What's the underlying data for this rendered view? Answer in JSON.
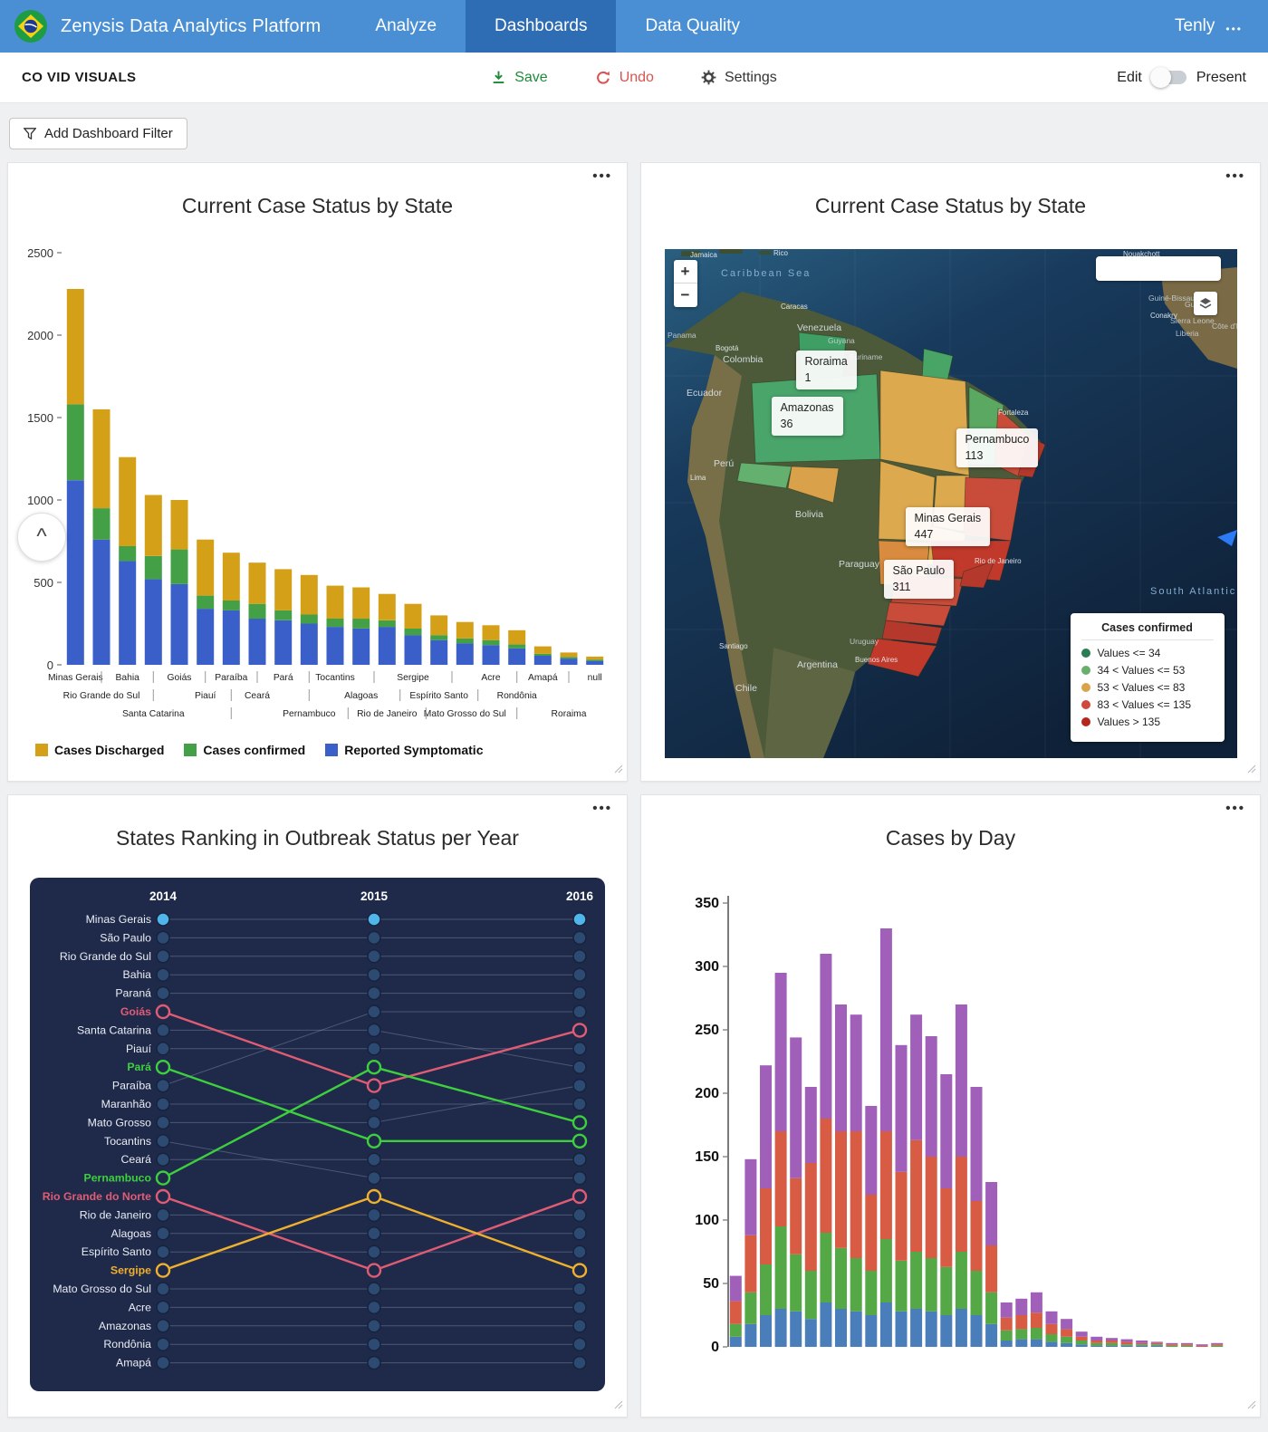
{
  "navbar": {
    "title": "Zenysis Data Analytics Platform",
    "tabs": [
      {
        "label": "Analyze",
        "active": false
      },
      {
        "label": "Dashboards",
        "active": true
      },
      {
        "label": "Data Quality",
        "active": false
      }
    ],
    "user": {
      "name": "Tenly",
      "menu_icon": "•••"
    }
  },
  "toolbar": {
    "dashboard_title": "CO VID VISUALS",
    "save_label": "Save",
    "undo_label": "Undo",
    "settings_label": "Settings",
    "edit_label": "Edit",
    "present_label": "Present"
  },
  "filter_bar": {
    "add_filter_label": "Add Dashboard Filter"
  },
  "tiles": [
    {
      "title": "Current Case Status by State",
      "menu_icon": "•••"
    },
    {
      "title": "Current Case Status by State",
      "menu_icon": "•••"
    },
    {
      "title": "States Ranking in Outbreak Status per Year",
      "menu_icon": "•••"
    },
    {
      "title": "Cases by Day",
      "menu_icon": "•••"
    }
  ],
  "chart_data": [
    {
      "type": "bar",
      "stacked": true,
      "title": "Current Case Status by State",
      "ylim": [
        0,
        2500
      ],
      "yticks": [
        0,
        500,
        1000,
        1500,
        2000,
        2500
      ],
      "categories": [
        "Minas Gerais",
        "Rio Grande do Sul",
        "Bahia",
        "Santa Catarina",
        "Goiás",
        "Piauí",
        "Paraíba",
        "Ceará",
        "Pará",
        "Pernambuco",
        "Tocantins",
        "Alagoas",
        "Rio de Janeiro",
        "Sergipe",
        "Espírito Santo",
        "Mato Grosso do Sul",
        "Acre",
        "Rondônia",
        "Amapá",
        "Roraima",
        "null"
      ],
      "label_rows": [
        0,
        1,
        0,
        2,
        0,
        1,
        0,
        1,
        0,
        2,
        0,
        1,
        2,
        0,
        1,
        2,
        0,
        1,
        0,
        2,
        0
      ],
      "series": [
        {
          "name": "Reported Symptomatic",
          "color": "#3a5fc8",
          "values": [
            1120,
            760,
            630,
            520,
            490,
            340,
            330,
            280,
            270,
            250,
            230,
            220,
            230,
            180,
            150,
            130,
            120,
            100,
            55,
            38,
            24
          ]
        },
        {
          "name": "Cases confirmed",
          "color": "#43a047",
          "values": [
            460,
            190,
            90,
            140,
            210,
            80,
            60,
            90,
            60,
            55,
            50,
            60,
            40,
            40,
            30,
            30,
            30,
            25,
            12,
            10,
            8
          ]
        },
        {
          "name": "Cases Discharged",
          "color": "#d4a017",
          "values": [
            700,
            600,
            540,
            370,
            300,
            340,
            290,
            250,
            250,
            240,
            200,
            190,
            160,
            150,
            120,
            100,
            90,
            85,
            45,
            27,
            18
          ]
        }
      ],
      "legend": [
        "Cases Discharged",
        "Cases confirmed",
        "Reported Symptomatic"
      ]
    },
    {
      "type": "map",
      "title": "Current Case Status by State",
      "metric": "Cases confirmed",
      "tooltips": [
        {
          "state": "Roraima",
          "value": "1"
        },
        {
          "state": "Amazonas",
          "value": "36"
        },
        {
          "state": "Pernambuco",
          "value": "113"
        },
        {
          "state": "Minas Gerais",
          "value": "447"
        },
        {
          "state": "São Paulo",
          "value": "311"
        }
      ],
      "legend": {
        "title": "Cases confirmed",
        "items": [
          {
            "label": "Values <= 34",
            "color": "#2a7d52"
          },
          {
            "label": "34 < Values <= 53",
            "color": "#6aaf6e"
          },
          {
            "label": "53 < Values <= 83",
            "color": "#d9a449"
          },
          {
            "label": "83 < Values <= 135",
            "color": "#cd4a3d"
          },
          {
            "label": "Values > 135",
            "color": "#b5271d"
          }
        ]
      },
      "controls": {
        "zoom_in": "+",
        "zoom_out": "−"
      },
      "map_labels": [
        "Jamaica",
        "Rico",
        "Caribbean Sea",
        "Caracas",
        "Venezuela",
        "Bogotá",
        "Colombia",
        "Guyana",
        "Suriname",
        "Ecuador",
        "Perú",
        "Lima",
        "Bolivia",
        "Paraguay",
        "Chile",
        "Santiago",
        "Argentina",
        "Uruguay",
        "Buenos Aires",
        "Fortaleza",
        "Rio de Janeiro",
        "Panama",
        "South Atlantic",
        "Guiné-Bissau",
        "Guinea",
        "Conakry",
        "Sierra Leone",
        "Liberia",
        "Côte d'Ivoire",
        "Nouakchott"
      ]
    },
    {
      "type": "bump",
      "title": "States Ranking in Outbreak Status per Year",
      "years": [
        "2014",
        "2015",
        "2016"
      ],
      "states": [
        {
          "name": "Minas Gerais",
          "ranks": [
            1,
            1,
            1
          ],
          "dot": "#4fb5ea"
        },
        {
          "name": "São Paulo",
          "ranks": [
            2,
            2,
            2
          ]
        },
        {
          "name": "Rio Grande do Sul",
          "ranks": [
            3,
            3,
            3
          ]
        },
        {
          "name": "Bahia",
          "ranks": [
            4,
            4,
            4
          ]
        },
        {
          "name": "Paraná",
          "ranks": [
            5,
            5,
            5
          ]
        },
        {
          "name": "Goiás",
          "ranks": [
            6,
            10,
            7
          ],
          "color": "#e05c74"
        },
        {
          "name": "Santa Catarina",
          "ranks": [
            7,
            7,
            9
          ]
        },
        {
          "name": "Piauí",
          "ranks": [
            8,
            8,
            8
          ]
        },
        {
          "name": "Pará",
          "ranks": [
            9,
            13,
            13
          ],
          "color": "#3ecf3e"
        },
        {
          "name": "Paraíba",
          "ranks": [
            10,
            6,
            6
          ]
        },
        {
          "name": "Maranhão",
          "ranks": [
            11,
            11,
            11
          ]
        },
        {
          "name": "Mato Grosso",
          "ranks": [
            12,
            12,
            10
          ]
        },
        {
          "name": "Tocantins",
          "ranks": [
            13,
            15,
            15
          ]
        },
        {
          "name": "Ceará",
          "ranks": [
            14,
            14,
            14
          ]
        },
        {
          "name": "Pernambuco",
          "ranks": [
            15,
            9,
            12
          ],
          "color": "#3ecf3e"
        },
        {
          "name": "Rio Grande do Norte",
          "ranks": [
            16,
            20,
            16
          ],
          "color": "#e05c74"
        },
        {
          "name": "Rio de Janeiro",
          "ranks": [
            17,
            17,
            17
          ]
        },
        {
          "name": "Alagoas",
          "ranks": [
            18,
            18,
            18
          ]
        },
        {
          "name": "Espírito Santo",
          "ranks": [
            19,
            19,
            19
          ]
        },
        {
          "name": "Sergipe",
          "ranks": [
            20,
            16,
            20
          ],
          "color": "#efb02e"
        },
        {
          "name": "Mato Grosso do Sul",
          "ranks": [
            21,
            21,
            21
          ]
        },
        {
          "name": "Acre",
          "ranks": [
            22,
            22,
            22
          ]
        },
        {
          "name": "Amazonas",
          "ranks": [
            23,
            23,
            23
          ]
        },
        {
          "name": "Rondônia",
          "ranks": [
            24,
            24,
            24
          ]
        },
        {
          "name": "Amapá",
          "ranks": [
            25,
            25,
            25
          ]
        }
      ]
    },
    {
      "type": "bar",
      "stacked": true,
      "title": "Cases by Day",
      "ylim": [
        0,
        350
      ],
      "yticks": [
        0,
        50,
        100,
        150,
        200,
        250,
        300,
        350
      ],
      "series": [
        {
          "name": "blue",
          "color": "#4a7ebb",
          "values": [
            8,
            18,
            25,
            30,
            28,
            22,
            35,
            30,
            28,
            25,
            35,
            28,
            30,
            28,
            25,
            30,
            25,
            18,
            5,
            6,
            6,
            4,
            3,
            2,
            1,
            1,
            1,
            1,
            1,
            0,
            0,
            0,
            0
          ]
        },
        {
          "name": "green",
          "color": "#55a846",
          "values": [
            10,
            25,
            40,
            65,
            45,
            38,
            55,
            48,
            42,
            35,
            50,
            40,
            45,
            42,
            38,
            45,
            35,
            25,
            8,
            8,
            9,
            6,
            5,
            3,
            2,
            2,
            1,
            1,
            1,
            1,
            1,
            0,
            1
          ]
        },
        {
          "name": "red",
          "color": "#d85c44",
          "values": [
            18,
            45,
            60,
            75,
            60,
            85,
            90,
            92,
            100,
            60,
            85,
            70,
            88,
            80,
            62,
            75,
            55,
            37,
            10,
            11,
            12,
            8,
            6,
            3,
            2,
            2,
            2,
            1,
            1,
            1,
            1,
            1,
            1
          ]
        },
        {
          "name": "purple",
          "color": "#a05fb8",
          "values": [
            20,
            60,
            97,
            125,
            111,
            60,
            130,
            100,
            92,
            70,
            160,
            100,
            99,
            95,
            90,
            120,
            90,
            50,
            12,
            13,
            16,
            10,
            8,
            4,
            3,
            2,
            2,
            2,
            1,
            1,
            1,
            1,
            1
          ]
        }
      ]
    }
  ]
}
